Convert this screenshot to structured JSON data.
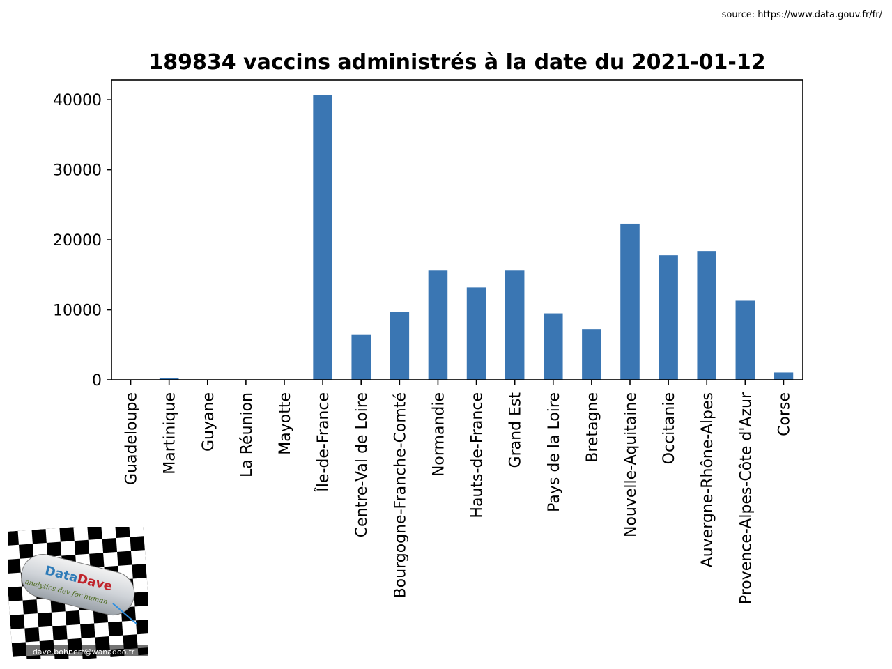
{
  "source": "source: https://www.data.gouv.fr/fr/",
  "chart_data": {
    "type": "bar",
    "title": "189834 vaccins administrés à la date du 2021-01-12",
    "xlabel": "",
    "ylabel": "",
    "ylim": [
      0,
      42800
    ],
    "yticks": [
      0,
      10000,
      20000,
      30000,
      40000
    ],
    "grid": false,
    "bar_color": "#3a76b3",
    "categories": [
      "Guadeloupe",
      "Martinique",
      "Guyane",
      "La Réunion",
      "Mayotte",
      "Île-de-France",
      "Centre-Val de Loire",
      "Bourgogne-Franche-Comté",
      "Normandie",
      "Hauts-de-France",
      "Grand Est",
      "Pays de la Loire",
      "Bretagne",
      "Nouvelle-Aquitaine",
      "Occitanie",
      "Auvergne-Rhône-Alpes",
      "Provence-Alpes-Côte d'Azur",
      "Corse"
    ],
    "values": [
      0,
      250,
      0,
      0,
      0,
      40700,
      6400,
      9750,
      15600,
      13200,
      15600,
      9500,
      7250,
      22300,
      17800,
      18400,
      11300,
      1050
    ]
  },
  "logo": {
    "brand_part1": "Data",
    "brand_part2": "Dave",
    "tagline": "analytics dev for human",
    "email": "dave.bohnert@wanadoo.fr"
  }
}
